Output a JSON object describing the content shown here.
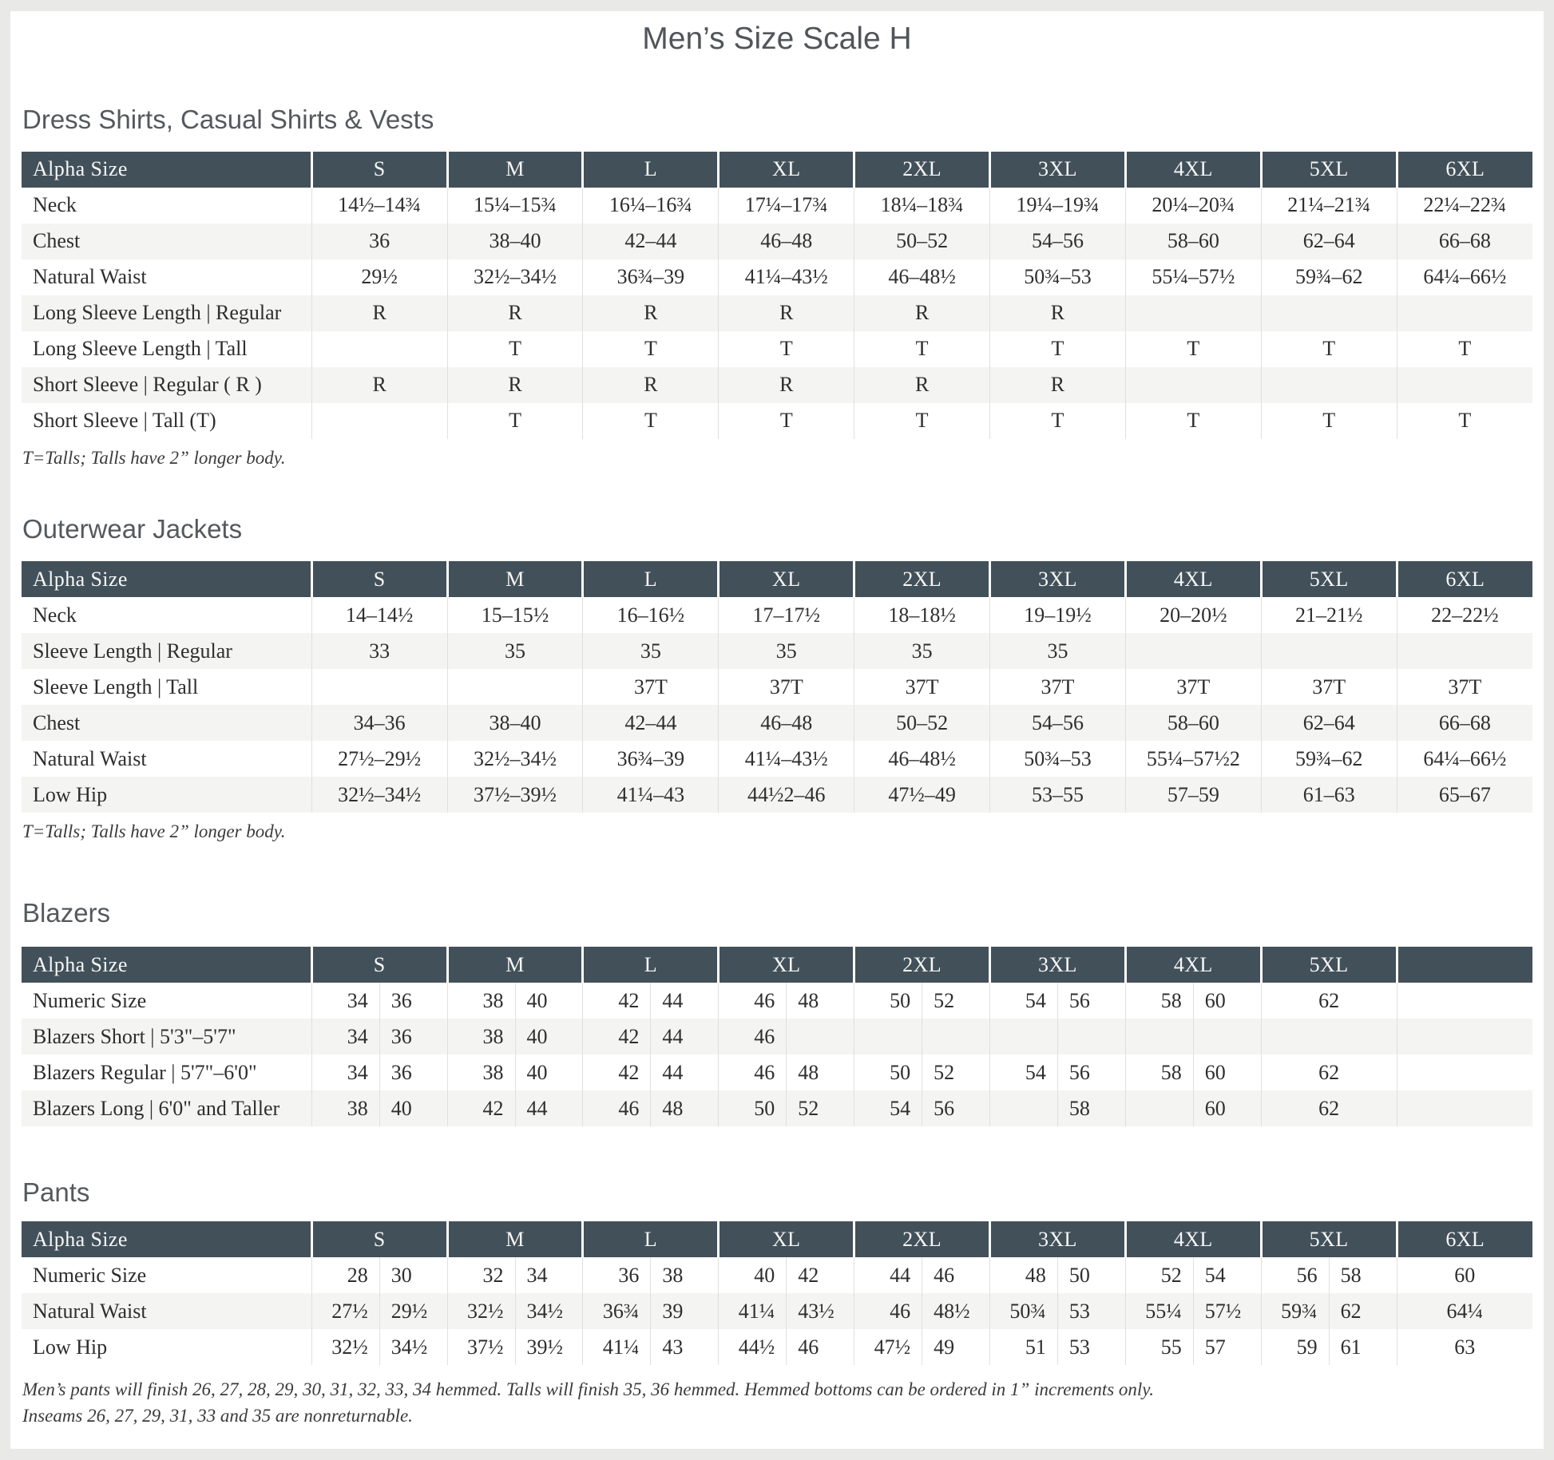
{
  "page_title": "Men’s Size Scale H",
  "colors": {
    "header_bg": "#42505a",
    "header_text": "#f6f7f7",
    "stripe": "#f4f4f2",
    "page_frame": "#e9e9e8",
    "content_bg": "#ffffff",
    "divider": "#e0e0de"
  },
  "sections": [
    {
      "heading": "Dress Shirts, Casual Shirts & Vests",
      "table": {
        "layout": "single",
        "header": [
          "Alpha Size",
          "S",
          "M",
          "L",
          "XL",
          "2XL",
          "3XL",
          "4XL",
          "5XL",
          "6XL"
        ],
        "rows": [
          {
            "label": "Neck",
            "cells": [
              "14½–14¾",
              "15¼–15¾",
              "16¼–16¾",
              "17¼–17¾",
              "18¼–18¾",
              "19¼–19¾",
              "20¼–20¾",
              "21¼–21¾",
              "22¼–22¾"
            ]
          },
          {
            "label": "Chest",
            "cells": [
              "36",
              "38–40",
              "42–44",
              "46–48",
              "50–52",
              "54–56",
              "58–60",
              "62–64",
              "66–68"
            ]
          },
          {
            "label": "Natural Waist",
            "cells": [
              "29½",
              "32½–34½",
              "36¾–39",
              "41¼–43½",
              "46–48½",
              "50¾–53",
              "55¼–57½",
              "59¾–62",
              "64¼–66½"
            ]
          },
          {
            "label": "Long Sleeve Length | Regular",
            "cells": [
              "R",
              "R",
              "R",
              "R",
              "R",
              "R",
              "",
              "",
              ""
            ]
          },
          {
            "label": "Long Sleeve Length | Tall",
            "cells": [
              "",
              "T",
              "T",
              "T",
              "T",
              "T",
              "T",
              "T",
              "T"
            ]
          },
          {
            "label": "Short Sleeve | Regular ( R )",
            "cells": [
              "R",
              "R",
              "R",
              "R",
              "R",
              "R",
              "",
              "",
              ""
            ]
          },
          {
            "label": "Short Sleeve | Tall (T)",
            "cells": [
              "",
              "T",
              "T",
              "T",
              "T",
              "T",
              "T",
              "T",
              "T"
            ]
          }
        ]
      },
      "footnote": "T=Talls; Talls have 2” longer body."
    },
    {
      "heading": "Outerwear Jackets",
      "table": {
        "layout": "single",
        "header": [
          "Alpha Size",
          "S",
          "M",
          "L",
          "XL",
          "2XL",
          "3XL",
          "4XL",
          "5XL",
          "6XL"
        ],
        "rows": [
          {
            "label": "Neck",
            "cells": [
              "14–14½",
              "15–15½",
              "16–16½",
              "17–17½",
              "18–18½",
              "19–19½",
              "20–20½",
              "21–21½",
              "22–22½"
            ]
          },
          {
            "label": "Sleeve Length | Regular",
            "cells": [
              "33",
              "35",
              "35",
              "35",
              "35",
              "35",
              "",
              "",
              ""
            ]
          },
          {
            "label": "Sleeve Length | Tall",
            "cells": [
              "",
              "",
              "37T",
              "37T",
              "37T",
              "37T",
              "37T",
              "37T",
              "37T"
            ]
          },
          {
            "label": "Chest",
            "cells": [
              "34–36",
              "38–40",
              "42–44",
              "46–48",
              "50–52",
              "54–56",
              "58–60",
              "62–64",
              "66–68"
            ]
          },
          {
            "label": "Natural Waist",
            "cells": [
              "27½–29½",
              "32½–34½",
              "36¾–39",
              "41¼–43½",
              "46–48½",
              "50¾–53",
              "55¼–57½2",
              "59¾–62",
              "64¼–66½"
            ]
          },
          {
            "label": "Low Hip",
            "cells": [
              "32½–34½",
              "37½–39½",
              "41¼–43",
              "44½2–46",
              "47½–49",
              "53–55",
              "57–59",
              "61–63",
              "65–67"
            ]
          }
        ]
      },
      "footnote": "T=Talls; Talls have 2” longer body."
    },
    {
      "heading": "Blazers",
      "table": {
        "layout": "split",
        "header": [
          "Alpha Size",
          "S",
          "M",
          "L",
          "XL",
          "2XL",
          "3XL",
          "4XL",
          "5XL",
          ""
        ],
        "rows": [
          {
            "label": "Numeric Size",
            "cells": [
              [
                "34",
                "36"
              ],
              [
                "38",
                "40"
              ],
              [
                "42",
                "44"
              ],
              [
                "46",
                "48"
              ],
              [
                "50",
                "52"
              ],
              [
                "54",
                "56"
              ],
              [
                "58",
                "60"
              ],
              "62",
              ""
            ]
          },
          {
            "label": "Blazers Short | 5'3\"–5'7\"",
            "cells": [
              [
                "34",
                "36"
              ],
              [
                "38",
                "40"
              ],
              [
                "42",
                "44"
              ],
              [
                "46",
                ""
              ],
              [
                "",
                ""
              ],
              [
                "",
                ""
              ],
              [
                "",
                ""
              ],
              "",
              ""
            ]
          },
          {
            "label": "Blazers Regular | 5'7\"–6'0\"",
            "cells": [
              [
                "34",
                "36"
              ],
              [
                "38",
                "40"
              ],
              [
                "42",
                "44"
              ],
              [
                "46",
                "48"
              ],
              [
                "50",
                "52"
              ],
              [
                "54",
                "56"
              ],
              [
                "58",
                "60"
              ],
              "62",
              ""
            ]
          },
          {
            "label": "Blazers Long | 6'0\" and Taller",
            "cells": [
              [
                "38",
                "40"
              ],
              [
                "42",
                "44"
              ],
              [
                "46",
                "48"
              ],
              [
                "50",
                "52"
              ],
              [
                "54",
                "56"
              ],
              [
                "",
                "58"
              ],
              [
                "",
                "60"
              ],
              "62",
              ""
            ]
          }
        ]
      }
    },
    {
      "heading": "Pants",
      "table": {
        "layout": "split",
        "header": [
          "Alpha Size",
          "S",
          "M",
          "L",
          "XL",
          "2XL",
          "3XL",
          "4XL",
          "5XL",
          "6XL"
        ],
        "rows": [
          {
            "label": "Numeric Size",
            "cells": [
              [
                "28",
                "30"
              ],
              [
                "32",
                "34"
              ],
              [
                "36",
                "38"
              ],
              [
                "40",
                "42"
              ],
              [
                "44",
                "46"
              ],
              [
                "48",
                "50"
              ],
              [
                "52",
                "54"
              ],
              [
                "56",
                "58"
              ],
              "60"
            ]
          },
          {
            "label": "Natural Waist",
            "cells": [
              [
                "27½",
                "29½"
              ],
              [
                "32½",
                "34½"
              ],
              [
                "36¾",
                "39"
              ],
              [
                "41¼",
                "43½"
              ],
              [
                "46",
                "48½"
              ],
              [
                "50¾",
                "53"
              ],
              [
                "55¼",
                "57½"
              ],
              [
                "59¾",
                "62"
              ],
              "64¼"
            ]
          },
          {
            "label": "Low Hip",
            "cells": [
              [
                "32½",
                "34½"
              ],
              [
                "37½",
                "39½"
              ],
              [
                "41¼",
                "43"
              ],
              [
                "44½",
                "46"
              ],
              [
                "47½",
                "49"
              ],
              [
                "51",
                "53"
              ],
              [
                "55",
                "57"
              ],
              [
                "59",
                "61"
              ],
              "63"
            ]
          }
        ]
      },
      "notes": [
        "Men’s pants will finish 26, 27, 28, 29, 30, 31, 32, 33, 34 hemmed. Talls will finish 35, 36 hemmed. Hemmed bottoms can be ordered in 1” increments only.",
        "Inseams 26, 27, 29, 31, 33 and 35 are nonreturnable."
      ]
    }
  ]
}
